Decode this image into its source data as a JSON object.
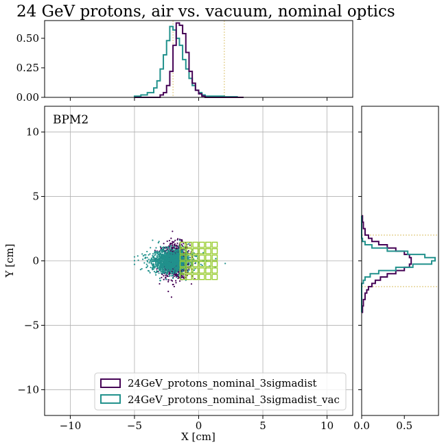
{
  "chart_data": {
    "type": "scatter",
    "title": "24 GeV protons, air vs. vacuum, nominal optics",
    "annotation": "BPM2",
    "xlabel": "X [cm]",
    "ylabel": "Y [cm]",
    "xlim": [
      -12,
      12
    ],
    "ylim": [
      -12,
      12
    ],
    "xticks": [
      -10,
      -5,
      0,
      5,
      10
    ],
    "xtick_labels": [
      "−10",
      "−5",
      "0",
      "5",
      "10"
    ],
    "yticks": [
      -10,
      -5,
      0,
      5,
      10
    ],
    "ytick_labels": [
      "−10",
      "−5",
      "0",
      "5",
      "10"
    ],
    "grid": true,
    "legend_position": "lower-center",
    "legend": [
      "24GeV_protons_nominal_3sigmadist",
      "24GeV_protons_nominal_3sigmadist_vac"
    ],
    "colors": {
      "air": "#440154",
      "vac": "#21918c",
      "grid_overlay": "#9acd32",
      "guide": "#d4b44a",
      "grid_line": "#b0b0b0"
    },
    "series": [
      {
        "name": "24GeV_protons_nominal_3sigmadist",
        "x_mean": -1.8,
        "x_sigma": 0.55,
        "y_mean": 0.0,
        "y_sigma": 0.7,
        "x_range": [
          -3.4,
          0.5
        ],
        "y_range": [
          -3.9,
          3.4
        ]
      },
      {
        "name": "24GeV_protons_nominal_3sigmadist_vac",
        "x_mean": -2.2,
        "x_sigma": 0.7,
        "y_mean": 0.0,
        "y_sigma": 0.45,
        "x_range": [
          -5.0,
          3.8
        ],
        "y_range": [
          -1.6,
          1.6
        ]
      }
    ],
    "guide_lines": {
      "x": [
        -2.0,
        2.0
      ],
      "y": [
        -2.0,
        2.0
      ]
    },
    "top_histogram": {
      "ylim": [
        0,
        0.65
      ],
      "yticks": [
        0.0,
        0.25,
        0.5
      ],
      "ytick_labels": [
        "0.00",
        "0.25",
        "0.50"
      ],
      "bin_edges": [
        -5.0,
        -4.5,
        -4.0,
        -3.5,
        -3.25,
        -3.0,
        -2.75,
        -2.5,
        -2.25,
        -2.0,
        -1.75,
        -1.5,
        -1.25,
        -1.0,
        -0.75,
        -0.5,
        -0.25,
        0.0,
        0.25,
        0.5,
        1.0,
        1.5,
        2.0,
        2.5,
        3.0,
        3.5
      ],
      "air": [
        0.0,
        0.0,
        0.0,
        0.0,
        0.0,
        0.02,
        0.04,
        0.1,
        0.22,
        0.44,
        0.63,
        0.61,
        0.54,
        0.38,
        0.22,
        0.12,
        0.06,
        0.03,
        0.01,
        0.0,
        0.0,
        0.0,
        0.0,
        0.0,
        0.0
      ],
      "vac": [
        0.01,
        0.02,
        0.04,
        0.08,
        0.14,
        0.24,
        0.36,
        0.48,
        0.6,
        0.57,
        0.5,
        0.44,
        0.32,
        0.24,
        0.16,
        0.1,
        0.06,
        0.04,
        0.02,
        0.01,
        0.01,
        0.01,
        0.005,
        0.005,
        0.0
      ]
    },
    "right_histogram": {
      "xlim": [
        0,
        0.9
      ],
      "xticks": [
        0.0,
        0.5
      ],
      "xtick_labels": [
        "0.0",
        "0.5"
      ],
      "bin_edges": [
        -4.0,
        -3.5,
        -3.0,
        -2.5,
        -2.25,
        -2.0,
        -1.75,
        -1.5,
        -1.25,
        -1.0,
        -0.75,
        -0.5,
        -0.25,
        0.0,
        0.25,
        0.5,
        0.75,
        1.0,
        1.25,
        1.5,
        1.75,
        2.0,
        2.5,
        3.0,
        3.5
      ],
      "air": [
        0.01,
        0.02,
        0.04,
        0.06,
        0.08,
        0.12,
        0.16,
        0.22,
        0.3,
        0.4,
        0.5,
        0.56,
        0.58,
        0.58,
        0.56,
        0.5,
        0.4,
        0.3,
        0.2,
        0.12,
        0.08,
        0.04,
        0.02,
        0.01
      ],
      "vac": [
        0.0,
        0.0,
        0.0,
        0.0,
        0.0,
        0.0,
        0.02,
        0.04,
        0.1,
        0.2,
        0.4,
        0.6,
        0.82,
        0.86,
        0.74,
        0.54,
        0.3,
        0.12,
        0.04,
        0.01,
        0.0,
        0.0,
        0.0,
        0.0
      ]
    },
    "overlay_grid": {
      "x_edges": [
        -1.5,
        -1.0,
        -0.5,
        0.0,
        0.5,
        1.0,
        1.5
      ],
      "y_edges": [
        -1.5,
        -1.0,
        -0.5,
        0.0,
        0.5,
        1.0,
        1.5
      ]
    }
  }
}
